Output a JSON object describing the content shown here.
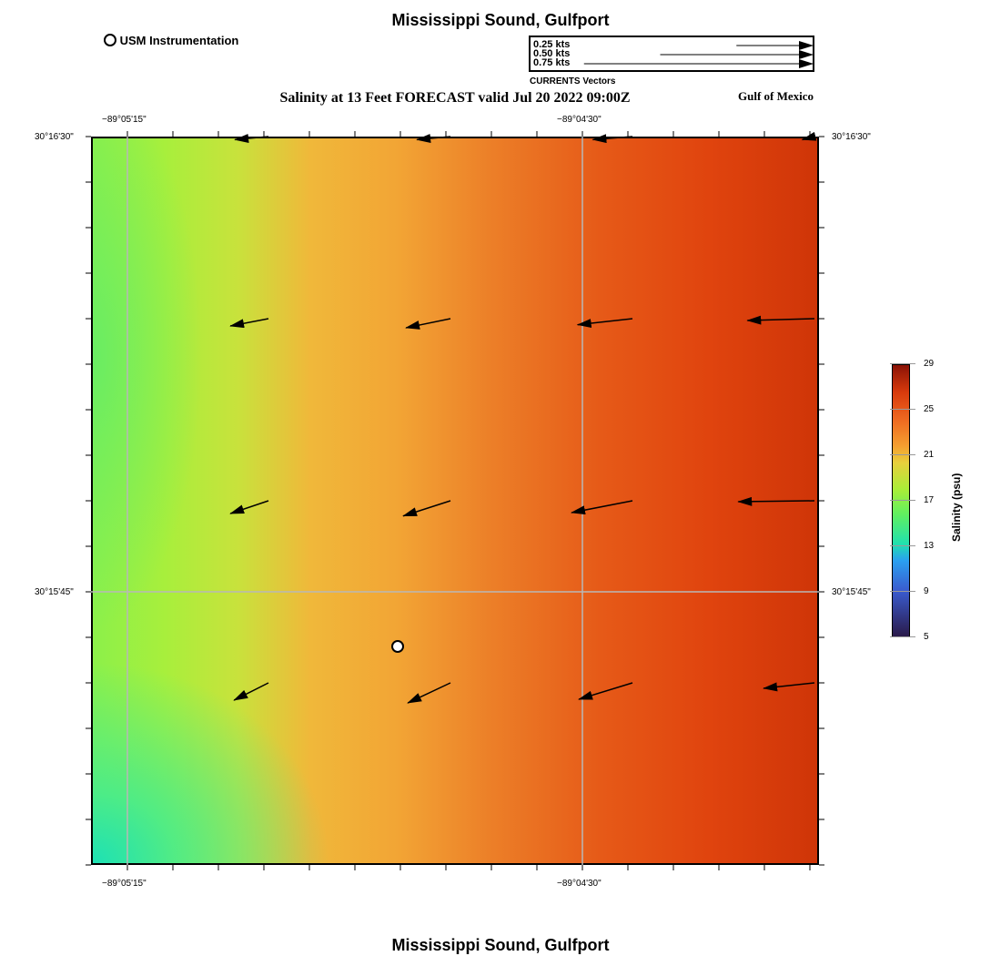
{
  "title_top": "Mississippi Sound, Gulfport",
  "title_bottom": "Mississippi Sound, Gulfport",
  "subtitle": "Salinity at 13 Feet FORECAST valid Jul 20 2022 09:00Z",
  "region": "Gulf of Mexico",
  "station_legend": "USM Instrumentation",
  "vector_legend": {
    "title": "CURRENTS Vectors",
    "items": [
      {
        "label": "0.25 kts",
        "kts": 0.25
      },
      {
        "label": "0.50 kts",
        "kts": 0.5
      },
      {
        "label": "0.75 kts",
        "kts": 0.75
      }
    ]
  },
  "axes": {
    "lon_left": "−89°05'15\"",
    "lon_right": "−89°04'30\"",
    "lat_top": "30°16'30\"",
    "lat_mid": "30°15'45\""
  },
  "colorbar": {
    "label": "Salinity (psu)",
    "ticks": [
      "29",
      "25",
      "21",
      "17",
      "13",
      "9",
      "5"
    ],
    "min": 5,
    "max": 29
  },
  "chart_data": {
    "type": "vector-field",
    "variable": "Salinity",
    "units": "psu",
    "vectors_kts": [
      [
        [
          -0.11,
          -0.01
        ],
        [
          -0.11,
          -0.01
        ],
        [
          -0.13,
          -0.01
        ],
        [
          -0.04,
          -0.01
        ]
      ],
      [
        [
          -0.125,
          -0.024
        ],
        [
          -0.146,
          -0.03
        ],
        [
          -0.18,
          -0.02
        ],
        [
          -0.22,
          -0.006
        ]
      ],
      [
        [
          -0.125,
          -0.042
        ],
        [
          -0.155,
          -0.05
        ],
        [
          -0.2,
          -0.039
        ],
        [
          -0.25,
          -0.003
        ]
      ],
      [
        [
          -0.113,
          -0.057
        ],
        [
          -0.14,
          -0.066
        ],
        [
          -0.176,
          -0.054
        ],
        [
          -0.167,
          -0.018
        ]
      ]
    ]
  }
}
